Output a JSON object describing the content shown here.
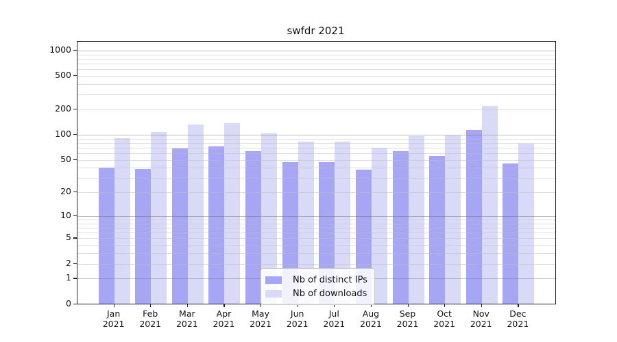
{
  "title": "swfdr 2021",
  "colors": {
    "bar_distinct_ips": "#a6a6f5",
    "bar_downloads": "#d9d9f8",
    "axis": "#1f1f1f",
    "grid_major": "#ababab",
    "grid_minor": "#dedede",
    "legend_border": "#cccccc"
  },
  "chart_data": {
    "type": "bar",
    "title": "swfdr 2021",
    "scale": "log1p",
    "grid": true,
    "legend_position": "lower center",
    "categories": [
      "Jan",
      "Feb",
      "Mar",
      "Apr",
      "May",
      "Jun",
      "Jul",
      "Aug",
      "Sep",
      "Oct",
      "Nov",
      "Dec"
    ],
    "year_label": "2021",
    "series": [
      {
        "name": "Nb of distinct IPs",
        "color": "#a6a6f5",
        "values": [
          40,
          39,
          68,
          73,
          63,
          47,
          47,
          38,
          63,
          56,
          115,
          45
        ]
      },
      {
        "name": "Nb of downloads",
        "color": "#d9d9f8",
        "values": [
          91,
          108,
          132,
          138,
          103,
          83,
          83,
          70,
          96,
          98,
          220,
          78
        ]
      }
    ],
    "yticks": [
      0,
      1,
      2,
      5,
      10,
      20,
      50,
      100,
      200,
      500,
      1000
    ],
    "ylim": [
      0,
      1290
    ],
    "xlabel": "",
    "ylabel": ""
  }
}
